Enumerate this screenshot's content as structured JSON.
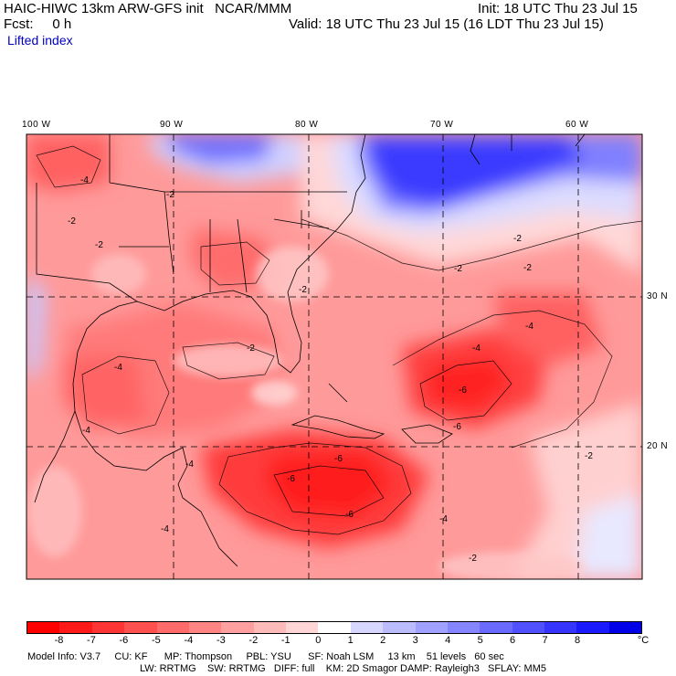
{
  "header": {
    "title": "HAIC-HIWC 13km ARW-GFS init   NCAR/MMM",
    "init": "Init: 18 UTC Thu 23 Jul 15",
    "fcst": "Fcst:     0 h",
    "valid": "Valid: 18 UTC Thu 23 Jul 15 (16 LDT Thu 23 Jul 15)",
    "field": "Lifted index"
  },
  "lon_labels": [
    "100 W",
    "90 W",
    "80 W",
    "70 W",
    "60 W"
  ],
  "lat_labels": [
    "30 N",
    "20 N"
  ],
  "contour_labels": [
    "-2",
    "-4",
    "-6"
  ],
  "colorbar": {
    "ticks": [
      "-8",
      "-7",
      "-6",
      "-5",
      "-4",
      "-3",
      "-2",
      "-1",
      "0",
      "1",
      "2",
      "3",
      "4",
      "5",
      "6",
      "7",
      "8"
    ],
    "unit": "°C",
    "colors": [
      "#ff0000",
      "#ff1a1a",
      "#ff3535",
      "#ff5050",
      "#ff6a6a",
      "#ff8585",
      "#ffa0a0",
      "#ffbaba",
      "#ffd5d5",
      "#ffffff",
      "#d6d6ff",
      "#bbbbff",
      "#a0a0ff",
      "#8585ff",
      "#6a6aff",
      "#5050ff",
      "#3535ff",
      "#1a1aff",
      "#0000e8"
    ]
  },
  "footer": {
    "line1": "Model Info: V3.7     CU: KF      MP: Thompson     PBL: YSU      SF: Noah LSM     13 km    51 levels   60 sec",
    "line2": "LW: RRTMG    SW: RRTMG   DIFF: full    KM: 2D Smagor DAMP: Rayleigh3   SFLAY: MM5"
  }
}
